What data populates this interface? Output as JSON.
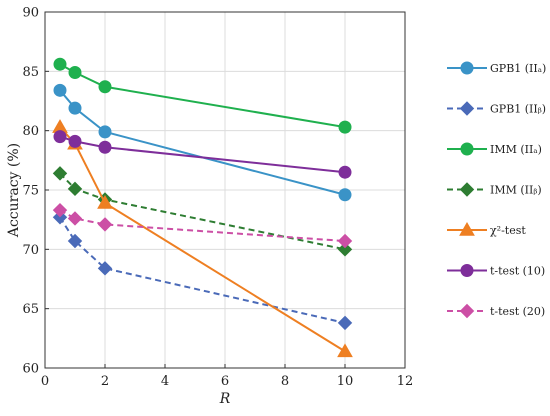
{
  "chart_data": {
    "type": "line",
    "xlabel": "R",
    "ylabel": "Accuracy (%)",
    "xlim": [
      0,
      12
    ],
    "ylim": [
      60,
      90
    ],
    "x_ticks": [
      "0",
      "2",
      "4",
      "6",
      "8",
      "10",
      "12"
    ],
    "y_ticks": [
      "60",
      "65",
      "70",
      "75",
      "80",
      "85",
      "90"
    ],
    "grid": true,
    "legend_position": "right (outside)",
    "series": [
      {
        "name": "GPB1 (IIₐ)",
        "x": [
          0.5,
          1,
          2,
          10
        ],
        "y": [
          83.4,
          81.9,
          79.9,
          74.6
        ],
        "color": "#3a93c7",
        "dash": "solid",
        "marker": "circle"
      },
      {
        "name": "GPB1 (IIᵦ)",
        "x": [
          0.5,
          1,
          2,
          10
        ],
        "y": [
          72.7,
          70.7,
          68.4,
          63.8
        ],
        "color": "#4a6ab8",
        "dash": "dashed",
        "marker": "diamond"
      },
      {
        "name": "IMM (IIₐ)",
        "x": [
          0.5,
          1,
          2,
          10
        ],
        "y": [
          85.6,
          84.9,
          83.7,
          80.3
        ],
        "color": "#1fb04e",
        "dash": "solid",
        "marker": "circle"
      },
      {
        "name": "IMM (IIᵦ)",
        "x": [
          0.5,
          1,
          2,
          10
        ],
        "y": [
          76.4,
          75.1,
          74.2,
          70.0
        ],
        "color": "#2e7d32",
        "dash": "dashed",
        "marker": "diamond"
      },
      {
        "name": "χ²-test",
        "x": [
          0.5,
          1,
          2,
          10
        ],
        "y": [
          80.3,
          78.9,
          73.9,
          61.4
        ],
        "color": "#ee7f22",
        "dash": "solid",
        "marker": "triangle"
      },
      {
        "name": "t-test (10)",
        "x": [
          0.5,
          1,
          2,
          10
        ],
        "y": [
          79.5,
          79.1,
          78.6,
          76.5
        ],
        "color": "#7e2e9a",
        "dash": "solid",
        "marker": "circle"
      },
      {
        "name": "t-test (20)",
        "x": [
          0.5,
          1,
          2,
          10
        ],
        "y": [
          73.3,
          72.6,
          72.1,
          70.7
        ],
        "color": "#cc4fa5",
        "dash": "dashed",
        "marker": "diamond"
      }
    ]
  }
}
